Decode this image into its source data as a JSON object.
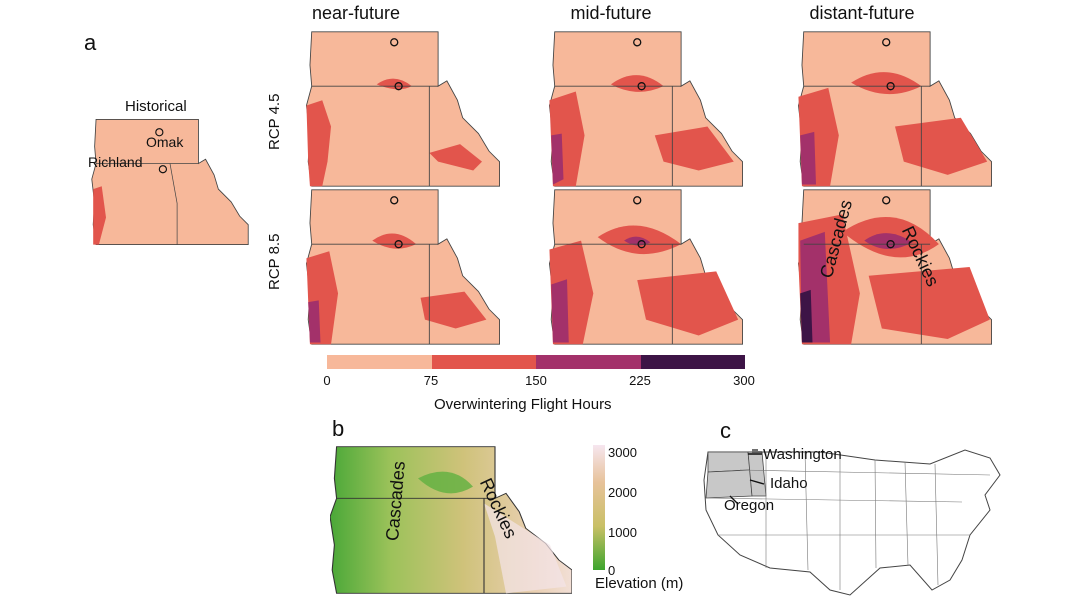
{
  "panels": {
    "a": "a",
    "b": "b",
    "c": "c"
  },
  "historical_title": "Historical",
  "cities": {
    "omak": "Omak",
    "richland": "Richland"
  },
  "columns": [
    "near-future",
    "mid-future",
    "distant-future"
  ],
  "rows": [
    "RCP 4.5",
    "RCP 8.5"
  ],
  "legend": {
    "ticks": [
      "0",
      "75",
      "150",
      "225",
      "300"
    ],
    "title": "Overwintering Flight Hours",
    "colors": [
      "#f7b89a",
      "#e2554c",
      "#a3316a",
      "#3d1446"
    ]
  },
  "map_labels": {
    "cascades": "Cascades",
    "rockies": "Rockies"
  },
  "elevation": {
    "ticks": [
      "3000",
      "2000",
      "1000",
      "0"
    ],
    "title": "Elevation (m)",
    "gradient": [
      "#f6e6ef",
      "#e7c29a",
      "#c9c066",
      "#3da52e"
    ]
  },
  "us_labels": {
    "washington": "Washington",
    "idaho": "Idaho",
    "oregon": "Oregon"
  }
}
